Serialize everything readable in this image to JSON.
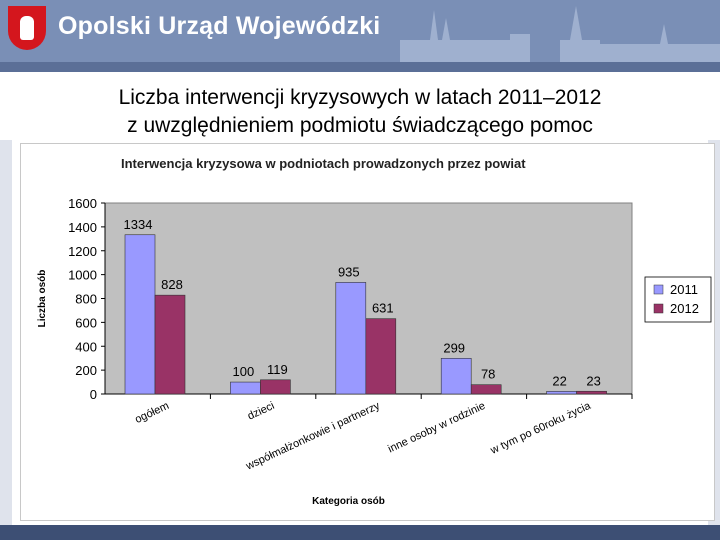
{
  "header": {
    "title": "Opolski Urząd Wojewódzki",
    "emblem_icon": "polish-eagle-icon",
    "colors": {
      "bar": "#7a8fb6",
      "band": "#5b6f97"
    }
  },
  "slide": {
    "title_line1": "Liczba interwencji kryzysowych w latach 2011–2012",
    "title_line2": "z uwzględnieniem podmiotu świadczącego pomoc"
  },
  "chart_data": {
    "type": "bar",
    "title": "Interwencja kryzysowa w podniotach prowadzonych przez powiat",
    "xlabel": "Kategoria osób",
    "ylabel": "Liczba osób",
    "categories": [
      "ogółem",
      "dzieci",
      "współmałżonkowie i partnerzy",
      "inne osoby w rodzinie",
      "w tym po 60roku życia"
    ],
    "series": [
      {
        "name": "2011",
        "values": [
          1334,
          100,
          935,
          299,
          22
        ],
        "color": "#9999ff"
      },
      {
        "name": "2012",
        "values": [
          828,
          119,
          631,
          78,
          23
        ],
        "color": "#993366"
      }
    ],
    "ylim": [
      0,
      1600
    ],
    "yticks": [
      0,
      200,
      400,
      600,
      800,
      1000,
      1200,
      1400,
      1600
    ],
    "grid": false,
    "plot_background": "#c0c0c0",
    "legend": "right"
  }
}
